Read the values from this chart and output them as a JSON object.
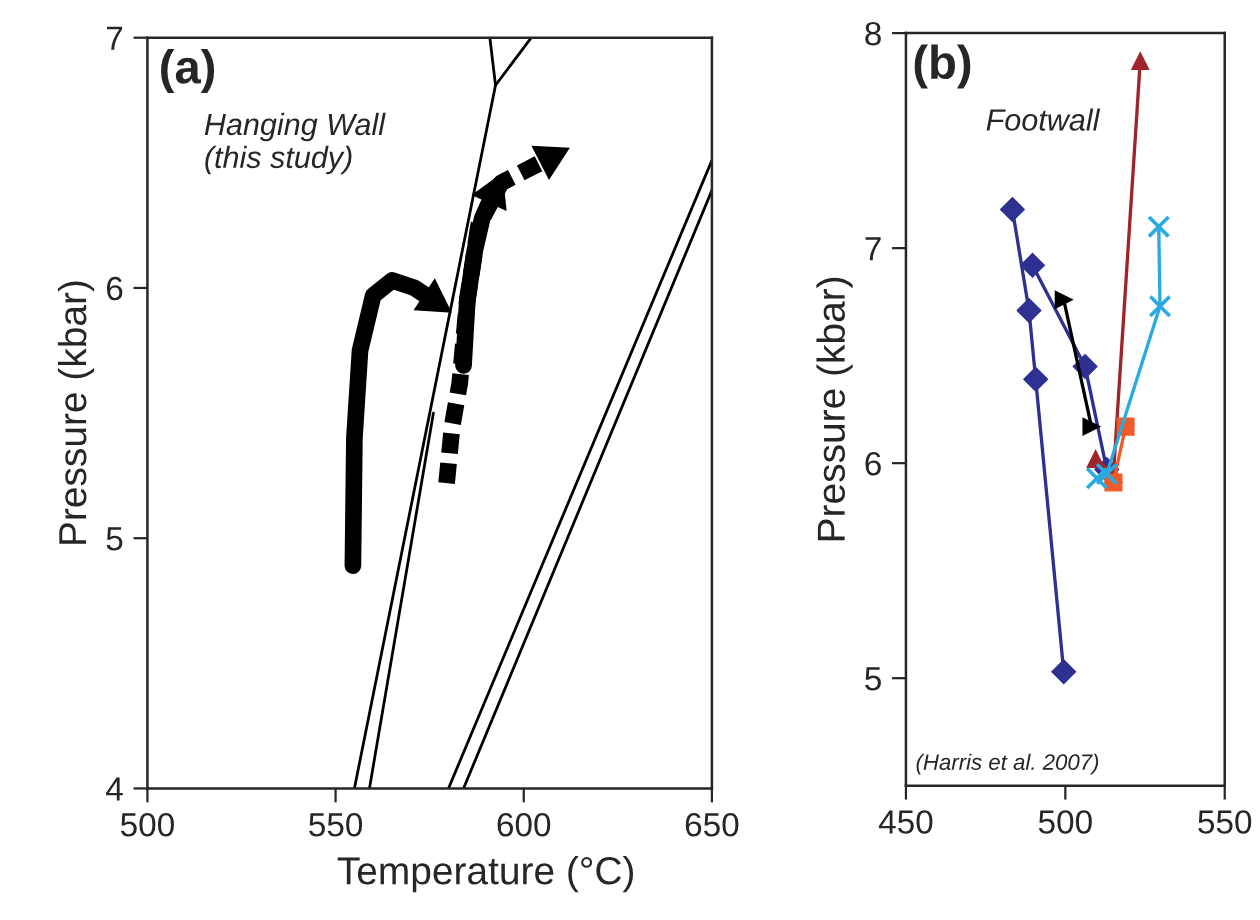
{
  "chart_data": [
    {
      "type": "line",
      "xlabel": "Temperature (°C)",
      "ylabel": "Pressure (kbar)",
      "xlim": [
        500,
        650
      ],
      "xticks": [
        500,
        550,
        600,
        650
      ],
      "ylim": [
        4,
        7
      ],
      "yticks": [
        4,
        5,
        6,
        7
      ],
      "grid": false,
      "legend": false,
      "marker": "none",
      "annotations": [
        "(a)",
        "Hanging Wall\n(this study)"
      ],
      "series": [
        {
          "color": "#000000",
          "x": [
            555,
            592.5,
            591
          ],
          "values": [
            4,
            6.81,
            7
          ]
        },
        {
          "color": "#000000",
          "x": [
            592.5,
            602
          ],
          "values": [
            6.81,
            7
          ]
        },
        {
          "color": "#000000",
          "x": [
            559,
            576
          ],
          "values": [
            4,
            5.5
          ]
        },
        {
          "color": "#000000",
          "x": [
            580,
            650
          ],
          "values": [
            4,
            6.51
          ]
        },
        {
          "color": "#000000",
          "x": [
            584,
            650
          ],
          "values": [
            4,
            6.39
          ]
        },
        {
          "color": "#000000",
          "line_style": "solid",
          "x": [
            554.6,
            555,
            556.5,
            560,
            565,
            571,
            576
          ],
          "values": [
            4.89,
            5.4,
            5.75,
            5.97,
            6.03,
            6.0,
            5.95
          ]
        },
        {
          "color": "#000000",
          "line_style": "solid",
          "x": [
            584,
            585,
            587,
            589,
            592
          ],
          "values": [
            5.69,
            5.95,
            6.15,
            6.28,
            6.38
          ]
        },
        {
          "color": "#000000",
          "line_style": "dashed",
          "x": [
            579.5,
            581,
            583,
            585,
            588,
            594,
            607
          ],
          "values": [
            5.22,
            5.45,
            5.62,
            5.95,
            6.25,
            6.42,
            6.52
          ]
        }
      ]
    },
    {
      "type": "line",
      "ylabel": "Pressure (kbar)",
      "xlim": [
        450,
        550
      ],
      "xticks": [
        450,
        500,
        550
      ],
      "ylim": [
        4.5,
        8
      ],
      "yticks": [
        5,
        6,
        7,
        8
      ],
      "grid": false,
      "legend": false,
      "annotations": [
        "(b)",
        "Footwall",
        "(Harris et al. 2007)"
      ],
      "series": [
        {
          "color": "#2e3192",
          "marker": "diamond",
          "x": [
            483.4,
            488.6,
            490.7,
            499.5
          ],
          "values": [
            7.18,
            6.71,
            6.39,
            5.03
          ]
        },
        {
          "color": "#2e3192",
          "marker": "diamond",
          "x": [
            489.7,
            506.2,
            513
          ],
          "values": [
            6.92,
            6.45,
            5.97
          ]
        },
        {
          "color": "#000000",
          "marker": "triangle",
          "x": [
            499.5,
            508.2
          ],
          "values": [
            6.76,
            6.17
          ]
        },
        {
          "color": "#a0252a",
          "marker": "triangle",
          "x": [
            509.5,
            515.1,
            523.5
          ],
          "values": [
            6.02,
            5.95,
            7.87
          ]
        },
        {
          "color": "#f15a29",
          "marker": "square",
          "x": [
            515.1,
            518.9
          ],
          "values": [
            5.91,
            6.17
          ]
        },
        {
          "color": "#29abe2",
          "marker": "cross",
          "x": [
            509.9,
            513,
            529.7,
            529.3
          ],
          "values": [
            5.93,
            5.95,
            6.73,
            7.1
          ]
        }
      ]
    }
  ]
}
